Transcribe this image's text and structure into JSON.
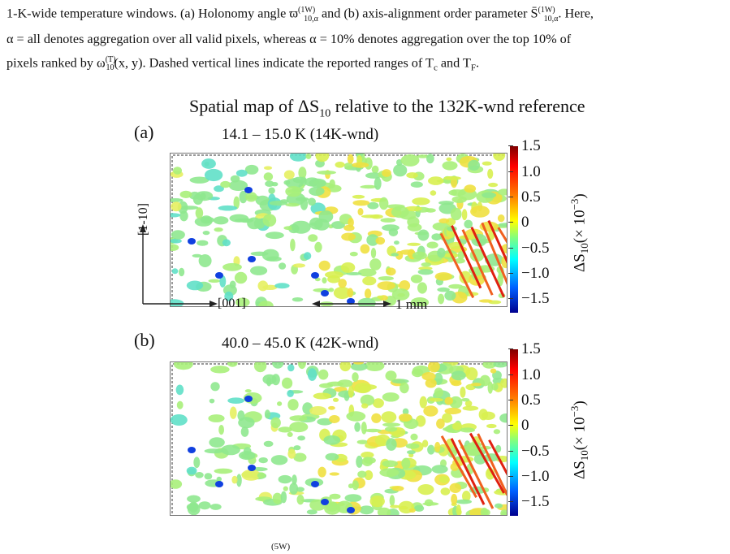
{
  "caption": {
    "line1": "1-K-wide temperature windows. (a) Holonomy angle ϖ",
    "line1_sup": "(1W)",
    "line1_sub": "10,α",
    "line1_mid": " and (b) axis-alignment order parameter S̄",
    "line1_sup2": "(1W)",
    "line1_sub2": "10,α",
    "line1_end": ". Here,",
    "line2": "α = all denotes aggregation over all valid pixels, whereas α = 10% denotes aggregation over the top 10% of",
    "line3_pre": "pixels ranked by ω",
    "line3_sup": "(T)",
    "line3_sub": "10",
    "line3_post": "(x, y). Dashed vertical lines indicate the reported ranges of T",
    "line3_c": "c",
    "line3_and": " and T",
    "line3_f": "F",
    "line3_end": "."
  },
  "figure": {
    "title": "Spatial map of ΔS",
    "title_sub": "10",
    "title_tail": " relative to the 132K-wnd reference",
    "panels": [
      {
        "letter": "(a)",
        "subtitle": "14.1 – 15.0 K (14K-wnd)"
      },
      {
        "letter": "(b)",
        "subtitle": "40.0 – 45.0 K (42K-wnd)"
      }
    ],
    "colorbar_ticks": [
      "1.5",
      "1.0",
      "0.5",
      "0",
      "−0.5",
      "−1.0",
      "−1.5"
    ],
    "colorbar_label": "ΔS",
    "colorbar_label_sub": "10",
    "colorbar_label_tail": "(× 10",
    "colorbar_label_exp": "−3",
    "colorbar_label_close": ")",
    "y_axis_label": "[1-10]",
    "x_axis_label": "[001]",
    "scale_bar_label": "1 mm",
    "bottom_fragment": "(5W)"
  },
  "colors": {
    "cmap_top": "#7f0000",
    "cmap_mid": "#80ff80",
    "cmap_bottom": "#00008f"
  }
}
